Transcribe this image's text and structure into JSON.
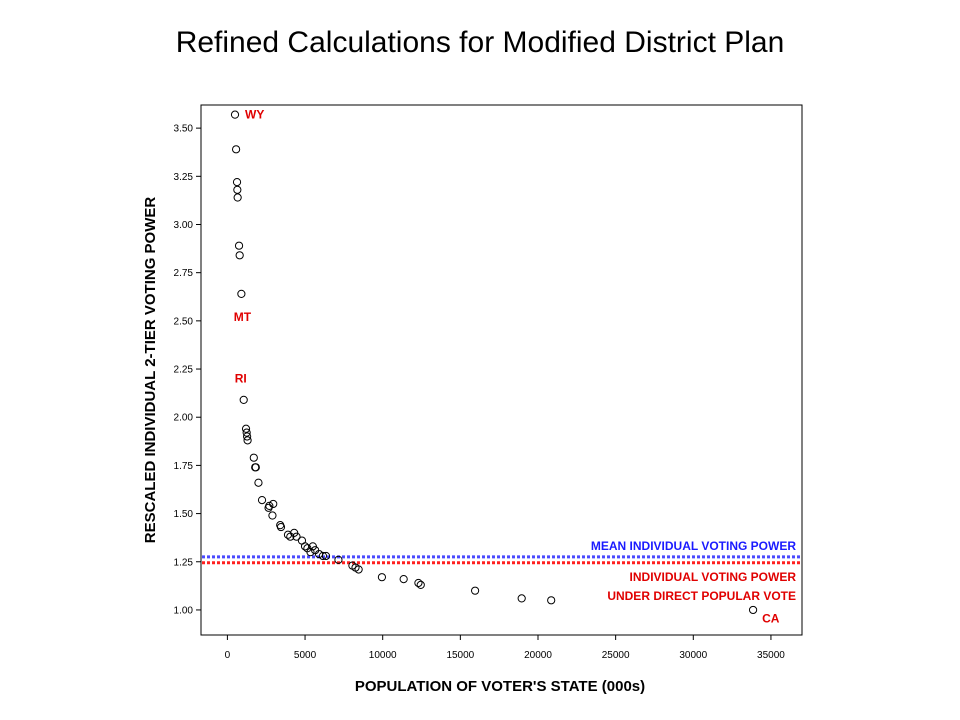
{
  "title": "Refined Calculations for Modified District Plan",
  "chart_data": {
    "type": "scatter",
    "xlabel": "POPULATION OF VOTER'S STATE (000s)",
    "ylabel": "RESCALED INDIVIDUAL 2-TIER VOTING POWER",
    "xlim": [
      -1700,
      37000
    ],
    "ylim": [
      0.87,
      3.62
    ],
    "x_ticks": [
      0,
      5000,
      10000,
      15000,
      20000,
      25000,
      30000,
      35000
    ],
    "y_ticks": [
      "1.00",
      "1.25",
      "1.50",
      "1.75",
      "2.00",
      "2.25",
      "2.50",
      "2.75",
      "3.00",
      "3.25",
      "3.50"
    ],
    "grid": false,
    "points": [
      {
        "x": 490,
        "y": 3.57
      },
      {
        "x": 560,
        "y": 3.39
      },
      {
        "x": 620,
        "y": 3.22
      },
      {
        "x": 640,
        "y": 3.18
      },
      {
        "x": 660,
        "y": 3.14
      },
      {
        "x": 750,
        "y": 2.89
      },
      {
        "x": 790,
        "y": 2.84
      },
      {
        "x": 900,
        "y": 2.64
      },
      {
        "x": 1050,
        "y": 2.09
      },
      {
        "x": 1200,
        "y": 1.94
      },
      {
        "x": 1240,
        "y": 1.92
      },
      {
        "x": 1270,
        "y": 1.9
      },
      {
        "x": 1300,
        "y": 1.88
      },
      {
        "x": 1700,
        "y": 1.79
      },
      {
        "x": 1790,
        "y": 1.74
      },
      {
        "x": 1830,
        "y": 1.74
      },
      {
        "x": 2000,
        "y": 1.66
      },
      {
        "x": 2230,
        "y": 1.57
      },
      {
        "x": 2650,
        "y": 1.53
      },
      {
        "x": 2700,
        "y": 1.54
      },
      {
        "x": 2900,
        "y": 1.49
      },
      {
        "x": 2950,
        "y": 1.55
      },
      {
        "x": 3400,
        "y": 1.44
      },
      {
        "x": 3450,
        "y": 1.43
      },
      {
        "x": 3900,
        "y": 1.39
      },
      {
        "x": 4050,
        "y": 1.38
      },
      {
        "x": 4300,
        "y": 1.4
      },
      {
        "x": 4450,
        "y": 1.38
      },
      {
        "x": 4800,
        "y": 1.36
      },
      {
        "x": 5000,
        "y": 1.33
      },
      {
        "x": 5150,
        "y": 1.32
      },
      {
        "x": 5350,
        "y": 1.3
      },
      {
        "x": 5500,
        "y": 1.33
      },
      {
        "x": 5650,
        "y": 1.31
      },
      {
        "x": 5900,
        "y": 1.29
      },
      {
        "x": 6150,
        "y": 1.28
      },
      {
        "x": 6350,
        "y": 1.28
      },
      {
        "x": 7150,
        "y": 1.26
      },
      {
        "x": 8050,
        "y": 1.23
      },
      {
        "x": 8250,
        "y": 1.22
      },
      {
        "x": 8450,
        "y": 1.21
      },
      {
        "x": 9950,
        "y": 1.17
      },
      {
        "x": 11350,
        "y": 1.16
      },
      {
        "x": 12300,
        "y": 1.14
      },
      {
        "x": 12450,
        "y": 1.13
      },
      {
        "x": 15950,
        "y": 1.1
      },
      {
        "x": 18950,
        "y": 1.06
      },
      {
        "x": 20850,
        "y": 1.05
      },
      {
        "x": 33850,
        "y": 1.0
      }
    ],
    "reference_lines": [
      {
        "label": "MEAN INDIVIDUAL VOTING POWER",
        "y": 1.27,
        "color": "#4a4aff",
        "style": "dotted"
      },
      {
        "label": "INDIVIDUAL VOTING POWER UNDER DIRECT POPULAR VOTE",
        "y": 1.25,
        "color": "#ff2020",
        "style": "dotted"
      }
    ],
    "annotations": [
      {
        "text": "WY",
        "x": 490,
        "y": 3.57
      },
      {
        "text": "MT",
        "x": 900,
        "y": 2.52
      },
      {
        "text": "RI",
        "x": 1050,
        "y": 2.2
      },
      {
        "text": "CA",
        "x": 33850,
        "y": 0.97
      }
    ],
    "ref_text": {
      "mean_label": "MEAN INDIVIDUAL VOTING POWER",
      "direct_label_line1": "INDIVIDUAL VOTING POWER",
      "direct_label_line2": "UNDER DIRECT POPULAR VOTE"
    }
  }
}
